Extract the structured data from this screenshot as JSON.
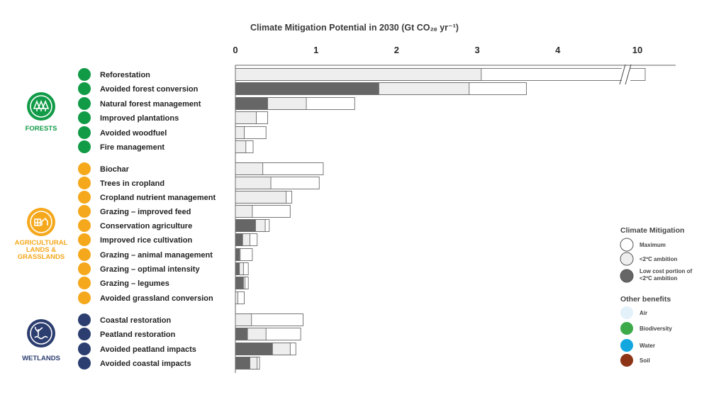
{
  "colors": {
    "low_cost": "#666666",
    "ambition": "#eeeeee",
    "maximum": "#ffffff",
    "bar_stroke": "#6a6a6a",
    "forests": "#119b47",
    "agriculture": "#f5a81c",
    "wetlands": "#2c3e70"
  },
  "groups": [
    {
      "label_lines": [
        "FORESTS"
      ],
      "color": "#119b47",
      "icon": "trees-icon"
    },
    {
      "label_lines": [
        "AGRICULTURAL",
        "LANDS &",
        "GRASSLANDS"
      ],
      "color": "#f5a81c",
      "icon": "wheat-cow-icon"
    },
    {
      "label_lines": [
        "WETLANDS"
      ],
      "color": "#2c3e70",
      "icon": "water-plant-icon"
    }
  ],
  "legend": {
    "mitigation_title": "Climate Mitigation",
    "mitigation_items": [
      {
        "label_lines": [
          "Maximum"
        ],
        "fill": "#ffffff"
      },
      {
        "label_lines": [
          "<2ºC ambition"
        ],
        "fill": "#eeeeee"
      },
      {
        "label_lines": [
          "Low cost portion of",
          "<2ºC ambition"
        ],
        "fill": "#666666"
      }
    ],
    "benefits_title": "Other benefits",
    "benefit_items": [
      {
        "label": "Air",
        "color": "#e3f1fb"
      },
      {
        "label": "Biodiversity",
        "color": "#3daa4a"
      },
      {
        "label": "Water",
        "color": "#13a7e0"
      },
      {
        "label": "Soil",
        "color": "#8e3416"
      }
    ]
  },
  "chart_data": {
    "type": "bar",
    "orientation": "horizontal",
    "title": "Climate Mitigation Potential in 2030 (Gt CO₂ₑ yr⁻¹)",
    "x_ticks": [
      "0",
      "1",
      "2",
      "3",
      "4",
      "10"
    ],
    "xlim": [
      0,
      4
    ],
    "axis_break": "between 4 and 10",
    "categories": [
      "Reforestation",
      "Avoided forest conversion",
      "Natural forest management",
      "Improved plantations",
      "Avoided woodfuel",
      "Fire management",
      "Biochar",
      "Trees in cropland",
      "Cropland nutrient management",
      "Grazing – improved feed",
      "Conservation agriculture",
      "Improved rice cultivation",
      "Grazing – animal management",
      "Grazing – optimal intensity",
      "Grazing – legumes",
      "Avoided grassland conversion",
      "Coastal restoration",
      "Peatland restoration",
      "Avoided peatland impacts",
      "Avoided coastal impacts"
    ],
    "category_group": [
      0,
      0,
      0,
      0,
      0,
      0,
      1,
      1,
      1,
      1,
      1,
      1,
      1,
      1,
      1,
      1,
      2,
      2,
      2,
      2
    ],
    "series": [
      {
        "name": "Low cost portion of <2ºC ambition",
        "values": [
          0,
          1.78,
          0.4,
          0,
          0,
          0,
          0,
          0,
          0,
          0,
          0.25,
          0.09,
          0.05,
          0.05,
          0.1,
          0,
          0,
          0.15,
          0.46,
          0.18
        ]
      },
      {
        "name": "<2ºC ambition",
        "values": [
          3.05,
          2.9,
          0.88,
          0.26,
          0.11,
          0.13,
          0.34,
          0.44,
          0.63,
          0.21,
          0.37,
          0.18,
          0.06,
          0.1,
          0.12,
          0.03,
          0.2,
          0.38,
          0.68,
          0.27
        ]
      },
      {
        "name": "Maximum",
        "values": [
          10.1,
          3.61,
          1.48,
          0.4,
          0.38,
          0.22,
          1.09,
          1.04,
          0.7,
          0.68,
          0.42,
          0.27,
          0.21,
          0.16,
          0.16,
          0.11,
          0.84,
          0.81,
          0.75,
          0.3
        ]
      }
    ]
  }
}
